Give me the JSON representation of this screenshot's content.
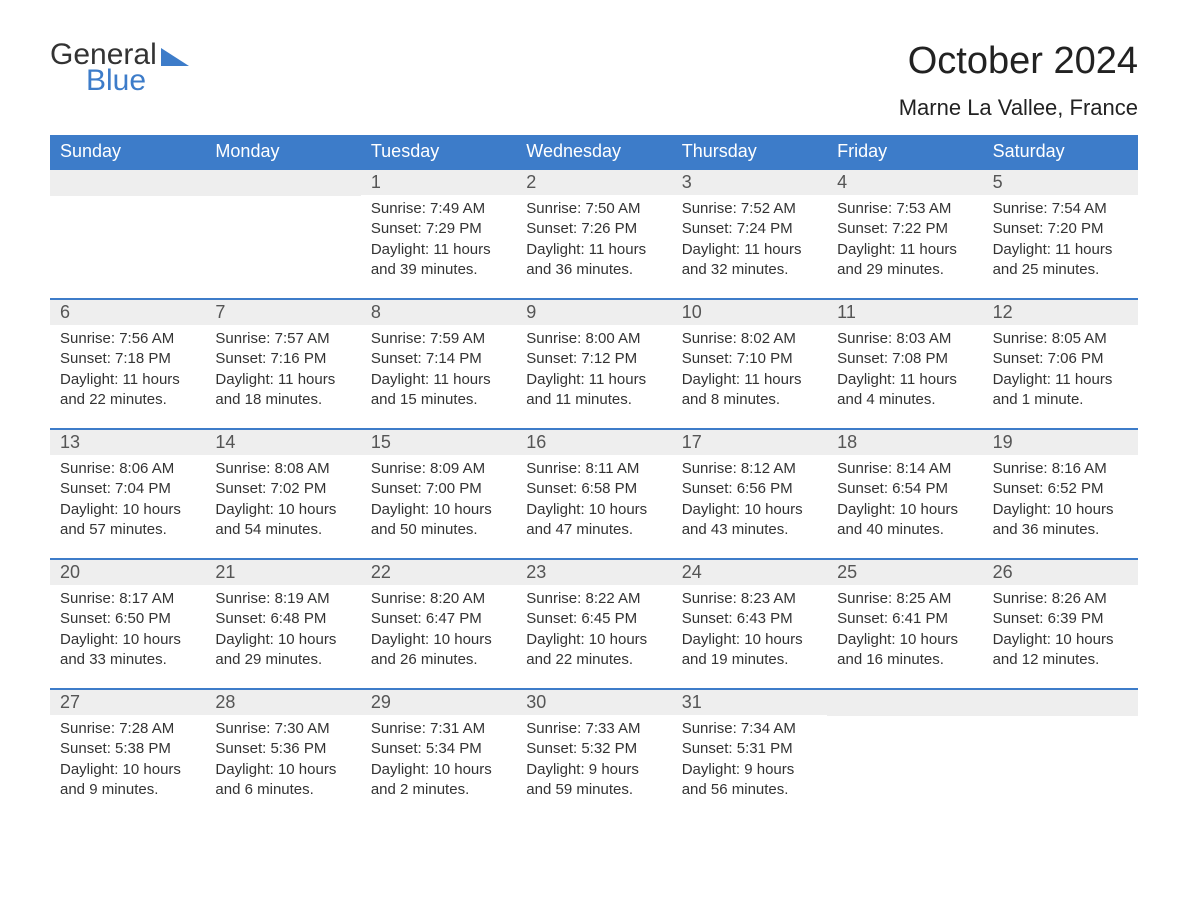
{
  "logo": {
    "line1": "General",
    "line2": "Blue",
    "text_color_line1": "#333333",
    "text_color_line2": "#3d7cc9",
    "triangle_color": "#3d7cc9"
  },
  "title": "October 2024",
  "location": "Marne La Vallee, France",
  "colors": {
    "header_bg": "#3d7cc9",
    "header_text": "#ffffff",
    "daynum_bg": "#eeeeee",
    "daynum_text": "#555555",
    "body_text": "#333333",
    "week_border": "#3d7cc9",
    "page_bg": "#ffffff"
  },
  "fonts": {
    "title_size_pt": 29,
    "location_size_pt": 17,
    "dow_size_pt": 14,
    "daynum_size_pt": 14,
    "body_size_pt": 11
  },
  "days_of_week": [
    "Sunday",
    "Monday",
    "Tuesday",
    "Wednesday",
    "Thursday",
    "Friday",
    "Saturday"
  ],
  "weeks": [
    [
      {
        "n": "",
        "sunrise": "",
        "sunset": "",
        "daylight": ""
      },
      {
        "n": "",
        "sunrise": "",
        "sunset": "",
        "daylight": ""
      },
      {
        "n": "1",
        "sunrise": "Sunrise: 7:49 AM",
        "sunset": "Sunset: 7:29 PM",
        "daylight": "Daylight: 11 hours and 39 minutes."
      },
      {
        "n": "2",
        "sunrise": "Sunrise: 7:50 AM",
        "sunset": "Sunset: 7:26 PM",
        "daylight": "Daylight: 11 hours and 36 minutes."
      },
      {
        "n": "3",
        "sunrise": "Sunrise: 7:52 AM",
        "sunset": "Sunset: 7:24 PM",
        "daylight": "Daylight: 11 hours and 32 minutes."
      },
      {
        "n": "4",
        "sunrise": "Sunrise: 7:53 AM",
        "sunset": "Sunset: 7:22 PM",
        "daylight": "Daylight: 11 hours and 29 minutes."
      },
      {
        "n": "5",
        "sunrise": "Sunrise: 7:54 AM",
        "sunset": "Sunset: 7:20 PM",
        "daylight": "Daylight: 11 hours and 25 minutes."
      }
    ],
    [
      {
        "n": "6",
        "sunrise": "Sunrise: 7:56 AM",
        "sunset": "Sunset: 7:18 PM",
        "daylight": "Daylight: 11 hours and 22 minutes."
      },
      {
        "n": "7",
        "sunrise": "Sunrise: 7:57 AM",
        "sunset": "Sunset: 7:16 PM",
        "daylight": "Daylight: 11 hours and 18 minutes."
      },
      {
        "n": "8",
        "sunrise": "Sunrise: 7:59 AM",
        "sunset": "Sunset: 7:14 PM",
        "daylight": "Daylight: 11 hours and 15 minutes."
      },
      {
        "n": "9",
        "sunrise": "Sunrise: 8:00 AM",
        "sunset": "Sunset: 7:12 PM",
        "daylight": "Daylight: 11 hours and 11 minutes."
      },
      {
        "n": "10",
        "sunrise": "Sunrise: 8:02 AM",
        "sunset": "Sunset: 7:10 PM",
        "daylight": "Daylight: 11 hours and 8 minutes."
      },
      {
        "n": "11",
        "sunrise": "Sunrise: 8:03 AM",
        "sunset": "Sunset: 7:08 PM",
        "daylight": "Daylight: 11 hours and 4 minutes."
      },
      {
        "n": "12",
        "sunrise": "Sunrise: 8:05 AM",
        "sunset": "Sunset: 7:06 PM",
        "daylight": "Daylight: 11 hours and 1 minute."
      }
    ],
    [
      {
        "n": "13",
        "sunrise": "Sunrise: 8:06 AM",
        "sunset": "Sunset: 7:04 PM",
        "daylight": "Daylight: 10 hours and 57 minutes."
      },
      {
        "n": "14",
        "sunrise": "Sunrise: 8:08 AM",
        "sunset": "Sunset: 7:02 PM",
        "daylight": "Daylight: 10 hours and 54 minutes."
      },
      {
        "n": "15",
        "sunrise": "Sunrise: 8:09 AM",
        "sunset": "Sunset: 7:00 PM",
        "daylight": "Daylight: 10 hours and 50 minutes."
      },
      {
        "n": "16",
        "sunrise": "Sunrise: 8:11 AM",
        "sunset": "Sunset: 6:58 PM",
        "daylight": "Daylight: 10 hours and 47 minutes."
      },
      {
        "n": "17",
        "sunrise": "Sunrise: 8:12 AM",
        "sunset": "Sunset: 6:56 PM",
        "daylight": "Daylight: 10 hours and 43 minutes."
      },
      {
        "n": "18",
        "sunrise": "Sunrise: 8:14 AM",
        "sunset": "Sunset: 6:54 PM",
        "daylight": "Daylight: 10 hours and 40 minutes."
      },
      {
        "n": "19",
        "sunrise": "Sunrise: 8:16 AM",
        "sunset": "Sunset: 6:52 PM",
        "daylight": "Daylight: 10 hours and 36 minutes."
      }
    ],
    [
      {
        "n": "20",
        "sunrise": "Sunrise: 8:17 AM",
        "sunset": "Sunset: 6:50 PM",
        "daylight": "Daylight: 10 hours and 33 minutes."
      },
      {
        "n": "21",
        "sunrise": "Sunrise: 8:19 AM",
        "sunset": "Sunset: 6:48 PM",
        "daylight": "Daylight: 10 hours and 29 minutes."
      },
      {
        "n": "22",
        "sunrise": "Sunrise: 8:20 AM",
        "sunset": "Sunset: 6:47 PM",
        "daylight": "Daylight: 10 hours and 26 minutes."
      },
      {
        "n": "23",
        "sunrise": "Sunrise: 8:22 AM",
        "sunset": "Sunset: 6:45 PM",
        "daylight": "Daylight: 10 hours and 22 minutes."
      },
      {
        "n": "24",
        "sunrise": "Sunrise: 8:23 AM",
        "sunset": "Sunset: 6:43 PM",
        "daylight": "Daylight: 10 hours and 19 minutes."
      },
      {
        "n": "25",
        "sunrise": "Sunrise: 8:25 AM",
        "sunset": "Sunset: 6:41 PM",
        "daylight": "Daylight: 10 hours and 16 minutes."
      },
      {
        "n": "26",
        "sunrise": "Sunrise: 8:26 AM",
        "sunset": "Sunset: 6:39 PM",
        "daylight": "Daylight: 10 hours and 12 minutes."
      }
    ],
    [
      {
        "n": "27",
        "sunrise": "Sunrise: 7:28 AM",
        "sunset": "Sunset: 5:38 PM",
        "daylight": "Daylight: 10 hours and 9 minutes."
      },
      {
        "n": "28",
        "sunrise": "Sunrise: 7:30 AM",
        "sunset": "Sunset: 5:36 PM",
        "daylight": "Daylight: 10 hours and 6 minutes."
      },
      {
        "n": "29",
        "sunrise": "Sunrise: 7:31 AM",
        "sunset": "Sunset: 5:34 PM",
        "daylight": "Daylight: 10 hours and 2 minutes."
      },
      {
        "n": "30",
        "sunrise": "Sunrise: 7:33 AM",
        "sunset": "Sunset: 5:32 PM",
        "daylight": "Daylight: 9 hours and 59 minutes."
      },
      {
        "n": "31",
        "sunrise": "Sunrise: 7:34 AM",
        "sunset": "Sunset: 5:31 PM",
        "daylight": "Daylight: 9 hours and 56 minutes."
      },
      {
        "n": "",
        "sunrise": "",
        "sunset": "",
        "daylight": ""
      },
      {
        "n": "",
        "sunrise": "",
        "sunset": "",
        "daylight": ""
      }
    ]
  ]
}
